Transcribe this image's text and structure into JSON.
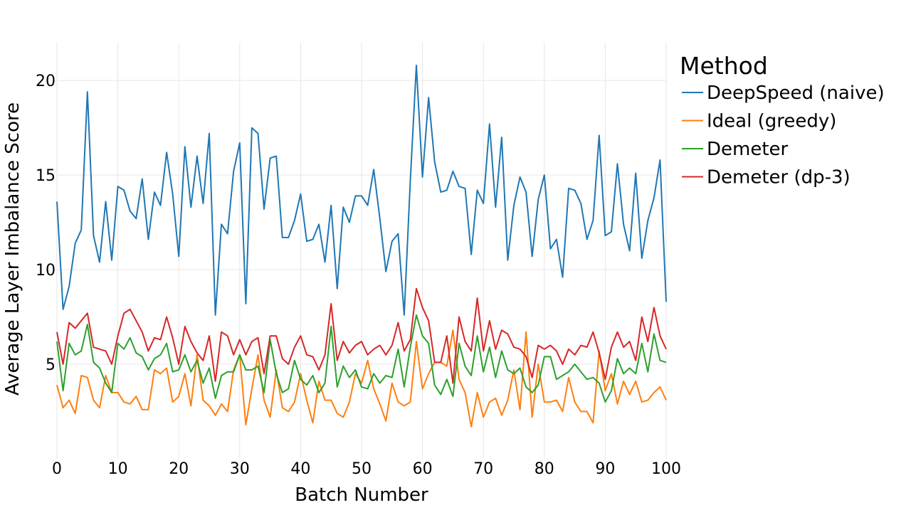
{
  "chart_data": {
    "type": "line",
    "xlabel": "Batch Number",
    "ylabel": "Average Layer Imbalance Score",
    "xlim": [
      0,
      100
    ],
    "ylim": [
      0,
      22
    ],
    "xticks": [
      0,
      10,
      20,
      30,
      40,
      50,
      60,
      70,
      80,
      90,
      100
    ],
    "yticks": [
      5,
      10,
      15,
      20
    ],
    "grid": true,
    "legend": {
      "title": "Method",
      "placement": "right"
    },
    "x": [
      0,
      1,
      2,
      3,
      4,
      5,
      6,
      7,
      8,
      9,
      10,
      11,
      12,
      13,
      14,
      15,
      16,
      17,
      18,
      19,
      20,
      21,
      22,
      23,
      24,
      25,
      26,
      27,
      28,
      29,
      30,
      31,
      32,
      33,
      34,
      35,
      36,
      37,
      38,
      39,
      40,
      41,
      42,
      43,
      44,
      45,
      46,
      47,
      48,
      49,
      50,
      51,
      52,
      53,
      54,
      55,
      56,
      57,
      58,
      59,
      60,
      61,
      62,
      63,
      64,
      65,
      66,
      67,
      68,
      69,
      70,
      71,
      72,
      73,
      74,
      75,
      76,
      77,
      78,
      79,
      80,
      81,
      82,
      83,
      84,
      85,
      86,
      87,
      88,
      89,
      90,
      91,
      92,
      93,
      94,
      95,
      96,
      97,
      98,
      99,
      100
    ],
    "series": [
      {
        "name": "DeepSpeed (naive)",
        "color": "#1f77b4",
        "values": [
          13.6,
          7.9,
          9.1,
          11.4,
          12.1,
          19.4,
          11.8,
          10.4,
          13.6,
          10.5,
          14.4,
          14.2,
          13.1,
          12.7,
          14.8,
          11.6,
          14.1,
          13.4,
          16.2,
          14.0,
          10.7,
          16.5,
          13.3,
          16.0,
          13.5,
          17.2,
          7.6,
          12.4,
          11.9,
          15.2,
          16.7,
          8.2,
          17.5,
          17.2,
          13.2,
          15.9,
          16.0,
          11.7,
          11.7,
          12.6,
          14.0,
          11.5,
          11.6,
          12.4,
          10.4,
          13.4,
          9.0,
          13.3,
          12.5,
          13.9,
          13.9,
          13.4,
          15.3,
          12.7,
          9.9,
          11.5,
          11.9,
          7.6,
          14.7,
          20.8,
          14.9,
          19.1,
          15.7,
          14.1,
          14.2,
          15.2,
          14.4,
          14.3,
          10.8,
          14.2,
          13.5,
          17.7,
          13.3,
          17.0,
          10.5,
          13.4,
          14.9,
          14.1,
          10.7,
          13.7,
          15.0,
          11.1,
          11.6,
          9.6,
          14.3,
          14.2,
          13.5,
          11.6,
          12.6,
          17.1,
          11.8,
          12.0,
          15.6,
          12.4,
          11.0,
          15.1,
          10.6,
          12.6,
          13.8,
          15.8,
          8.3
        ]
      },
      {
        "name": "Ideal (greedy)",
        "color": "#ff7f0e",
        "values": [
          3.9,
          2.7,
          3.1,
          2.4,
          4.4,
          4.3,
          3.1,
          2.7,
          4.4,
          3.5,
          3.5,
          3.0,
          2.9,
          3.3,
          2.6,
          2.6,
          4.7,
          4.5,
          4.8,
          3.0,
          3.3,
          4.5,
          2.8,
          5.5,
          3.1,
          2.8,
          2.3,
          2.9,
          2.5,
          4.7,
          5.5,
          1.8,
          3.7,
          5.5,
          3.1,
          2.2,
          4.7,
          2.7,
          2.5,
          3.0,
          4.5,
          3.1,
          1.9,
          4.1,
          3.1,
          3.1,
          2.4,
          2.2,
          3.0,
          4.5,
          4.0,
          5.2,
          3.7,
          2.9,
          2.0,
          4.0,
          3.0,
          2.8,
          3.0,
          6.2,
          3.7,
          4.5,
          5.1,
          5.1,
          4.9,
          6.8,
          4.2,
          3.5,
          1.7,
          3.5,
          2.2,
          3.0,
          3.2,
          2.3,
          3.1,
          4.7,
          2.6,
          6.7,
          2.2,
          5.0,
          3.0,
          3.0,
          3.1,
          2.5,
          4.3,
          3.0,
          2.5,
          2.5,
          1.9,
          5.7,
          3.6,
          4.5,
          2.9,
          4.1,
          3.4,
          4.1,
          3.0,
          3.1,
          3.5,
          3.8,
          3.1
        ]
      },
      {
        "name": "Demeter",
        "color": "#2ca02c",
        "values": [
          6.2,
          3.6,
          6.1,
          5.5,
          5.7,
          7.1,
          5.1,
          4.8,
          4.0,
          3.5,
          6.1,
          5.8,
          6.4,
          5.6,
          5.4,
          4.7,
          5.3,
          5.5,
          6.1,
          4.6,
          4.7,
          5.5,
          4.6,
          5.2,
          4.0,
          4.8,
          3.2,
          4.4,
          4.6,
          4.6,
          5.5,
          4.7,
          4.7,
          4.9,
          3.5,
          6.3,
          4.5,
          3.5,
          3.7,
          5.2,
          4.2,
          3.9,
          4.4,
          3.5,
          4.0,
          7.0,
          3.8,
          4.9,
          4.3,
          4.7,
          3.8,
          3.7,
          4.5,
          4.0,
          4.4,
          4.3,
          5.8,
          3.8,
          5.9,
          7.6,
          6.5,
          6.1,
          3.9,
          3.4,
          4.2,
          3.3,
          6.1,
          4.9,
          4.4,
          6.5,
          4.6,
          5.9,
          4.3,
          5.7,
          4.7,
          4.5,
          4.8,
          3.8,
          3.5,
          3.9,
          5.4,
          5.4,
          4.2,
          4.4,
          4.6,
          5.0,
          4.6,
          4.2,
          4.3,
          4.0,
          3.0,
          3.6,
          5.3,
          4.5,
          4.8,
          4.5,
          6.1,
          4.6,
          6.6,
          5.2,
          5.1
        ]
      },
      {
        "name": "Demeter (dp-3)",
        "color": "#d62728",
        "values": [
          6.7,
          5.0,
          7.2,
          6.9,
          7.3,
          7.7,
          5.9,
          5.8,
          5.7,
          5.0,
          6.5,
          7.7,
          7.9,
          7.3,
          6.7,
          5.7,
          6.4,
          6.3,
          7.5,
          6.4,
          5.0,
          7.0,
          6.2,
          5.6,
          5.2,
          6.5,
          4.1,
          6.7,
          6.5,
          5.5,
          6.3,
          5.5,
          6.2,
          6.4,
          4.5,
          6.5,
          6.5,
          5.3,
          5.0,
          5.9,
          6.5,
          5.5,
          5.4,
          4.7,
          5.5,
          8.2,
          5.2,
          6.2,
          5.6,
          6.0,
          6.2,
          5.5,
          5.8,
          6.0,
          5.5,
          6.0,
          7.2,
          5.7,
          6.3,
          9.0,
          8.0,
          7.3,
          5.1,
          5.1,
          6.5,
          4.0,
          7.5,
          6.2,
          5.7,
          8.5,
          5.7,
          7.3,
          5.8,
          6.8,
          6.6,
          5.9,
          5.8,
          5.4,
          4.3,
          6.0,
          5.8,
          6.0,
          5.7,
          5.0,
          5.8,
          5.5,
          6.0,
          5.9,
          6.7,
          5.6,
          4.2,
          5.9,
          6.7,
          5.9,
          6.2,
          5.2,
          7.5,
          6.2,
          8.0,
          6.5,
          5.8
        ]
      }
    ]
  }
}
